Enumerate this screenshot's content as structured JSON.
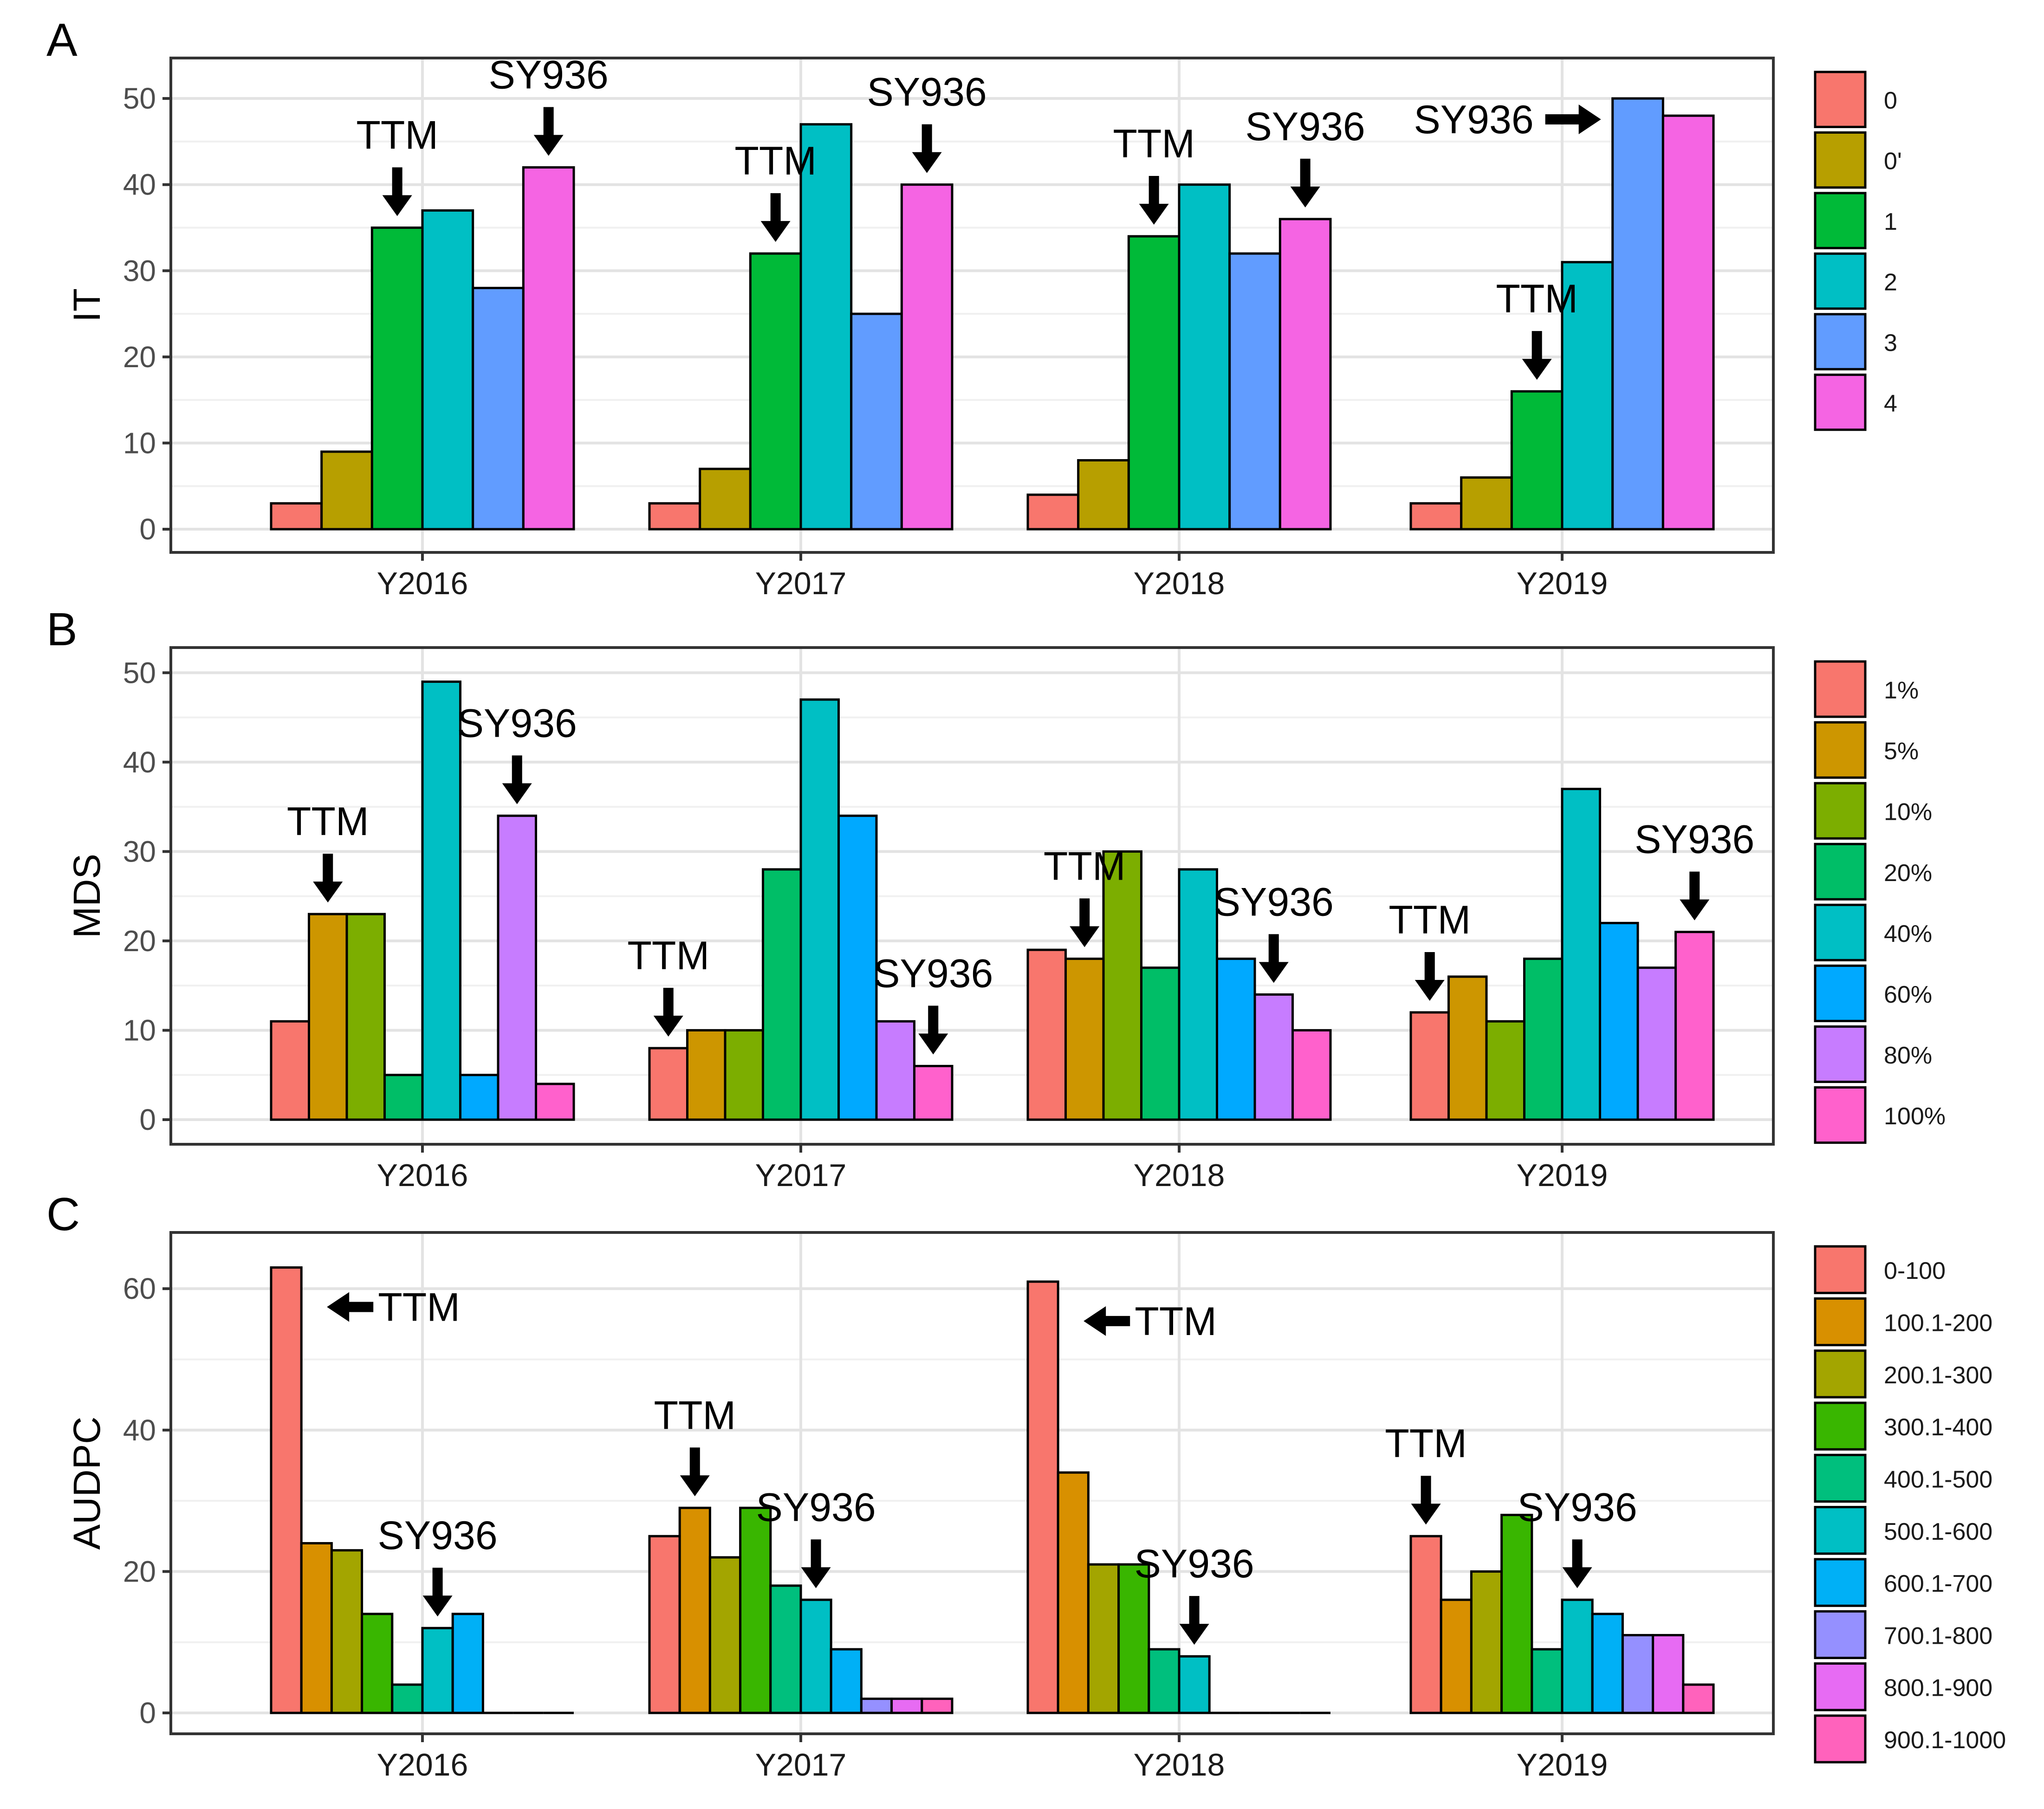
{
  "chart_data": [
    {
      "type": "bar",
      "panel_label": "A",
      "ylabel": "IT",
      "categories": [
        "Y2016",
        "Y2017",
        "Y2018",
        "Y2019"
      ],
      "ylim": [
        0,
        52
      ],
      "yticks": [
        0,
        10,
        20,
        30,
        40,
        50
      ],
      "legend_position": "right",
      "series": [
        {
          "name": "0",
          "color": "#F8766D",
          "values": [
            3,
            3,
            4,
            3
          ]
        },
        {
          "name": "0'",
          "color": "#B79F00",
          "values": [
            9,
            7,
            8,
            6
          ]
        },
        {
          "name": "1",
          "color": "#00BA38",
          "values": [
            35,
            32,
            34,
            16
          ]
        },
        {
          "name": "2",
          "color": "#00BFC4",
          "values": [
            37,
            47,
            40,
            31
          ]
        },
        {
          "name": "3",
          "color": "#619CFF",
          "values": [
            28,
            25,
            32,
            50
          ]
        },
        {
          "name": "4",
          "color": "#F564E3",
          "values": [
            42,
            40,
            36,
            48
          ]
        }
      ],
      "annotations": [
        {
          "text": "TTM",
          "category": "Y2016",
          "series": "1",
          "arrow": "down"
        },
        {
          "text": "SY936",
          "category": "Y2016",
          "series": "4",
          "arrow": "down"
        },
        {
          "text": "TTM",
          "category": "Y2017",
          "series": "1",
          "arrow": "down"
        },
        {
          "text": "SY936",
          "category": "Y2017",
          "series": "4",
          "arrow": "down"
        },
        {
          "text": "TTM",
          "category": "Y2018",
          "series": "1",
          "arrow": "down"
        },
        {
          "text": "SY936",
          "category": "Y2018",
          "series": "4",
          "arrow": "down"
        },
        {
          "text": "TTM",
          "category": "Y2019",
          "series": "1",
          "arrow": "down"
        },
        {
          "text": "SY936",
          "category": "Y2019",
          "series": "3",
          "arrow": "right"
        }
      ]
    },
    {
      "type": "bar",
      "panel_label": "B",
      "ylabel": "MDS",
      "categories": [
        "Y2016",
        "Y2017",
        "Y2018",
        "Y2019"
      ],
      "ylim": [
        0,
        51
      ],
      "yticks": [
        0,
        10,
        20,
        30,
        40,
        50
      ],
      "legend_position": "right",
      "series": [
        {
          "name": "1%",
          "color": "#F8766D",
          "values": [
            11,
            8,
            19,
            12
          ]
        },
        {
          "name": "5%",
          "color": "#CD9600",
          "values": [
            23,
            10,
            18,
            16
          ]
        },
        {
          "name": "10%",
          "color": "#7CAE00",
          "values": [
            23,
            10,
            30,
            11
          ]
        },
        {
          "name": "20%",
          "color": "#00BE67",
          "values": [
            5,
            28,
            17,
            18
          ]
        },
        {
          "name": "40%",
          "color": "#00BFC4",
          "values": [
            49,
            47,
            28,
            37
          ]
        },
        {
          "name": "60%",
          "color": "#00A9FF",
          "values": [
            5,
            34,
            18,
            22
          ]
        },
        {
          "name": "80%",
          "color": "#C77CFF",
          "values": [
            34,
            11,
            14,
            17
          ]
        },
        {
          "name": "100%",
          "color": "#FF61CC",
          "values": [
            4,
            6,
            10,
            21
          ]
        }
      ],
      "annotations": [
        {
          "text": "TTM",
          "category": "Y2016",
          "series": "5%",
          "arrow": "down"
        },
        {
          "text": "SY936",
          "category": "Y2016",
          "series": "80%",
          "arrow": "down"
        },
        {
          "text": "TTM",
          "category": "Y2017",
          "series": "1%",
          "arrow": "down"
        },
        {
          "text": "SY936",
          "category": "Y2017",
          "series": "100%",
          "arrow": "down"
        },
        {
          "text": "TTM",
          "category": "Y2018",
          "series": "5%",
          "arrow": "down"
        },
        {
          "text": "SY936",
          "category": "Y2018",
          "series": "80%",
          "arrow": "down"
        },
        {
          "text": "TTM",
          "category": "Y2019",
          "series": "1%",
          "arrow": "down"
        },
        {
          "text": "SY936",
          "category": "Y2019",
          "series": "100%",
          "arrow": "down"
        }
      ]
    },
    {
      "type": "bar",
      "panel_label": "C",
      "ylabel": "AUDPC",
      "categories": [
        "Y2016",
        "Y2017",
        "Y2018",
        "Y2019"
      ],
      "ylim": [
        0,
        65
      ],
      "yticks": [
        0,
        20,
        40,
        60
      ],
      "legend_position": "right",
      "series": [
        {
          "name": "0-100",
          "color": "#F8766D",
          "values": [
            63,
            25,
            61,
            25
          ]
        },
        {
          "name": "100.1-200",
          "color": "#D89000",
          "values": [
            24,
            29,
            34,
            16
          ]
        },
        {
          "name": "200.1-300",
          "color": "#A3A500",
          "values": [
            23,
            22,
            21,
            20
          ]
        },
        {
          "name": "300.1-400",
          "color": "#39B600",
          "values": [
            14,
            29,
            21,
            28
          ]
        },
        {
          "name": "400.1-500",
          "color": "#00BF7D",
          "values": [
            4,
            18,
            9,
            9
          ]
        },
        {
          "name": "500.1-600",
          "color": "#00BFC4",
          "values": [
            12,
            16,
            8,
            16
          ]
        },
        {
          "name": "600.1-700",
          "color": "#00B0F6",
          "values": [
            14,
            9,
            0,
            14
          ]
        },
        {
          "name": "700.1-800",
          "color": "#9590FF",
          "values": [
            0,
            2,
            0,
            11
          ]
        },
        {
          "name": "800.1-900",
          "color": "#E76BF3",
          "values": [
            0,
            2,
            0,
            11
          ]
        },
        {
          "name": "900.1-1000",
          "color": "#FF62BC",
          "values": [
            0,
            2,
            0,
            4
          ]
        }
      ],
      "annotations": [
        {
          "text": "TTM",
          "category": "Y2016",
          "series": "0-100",
          "arrow": "left"
        },
        {
          "text": "SY936",
          "category": "Y2016",
          "series": "500.1-600",
          "arrow": "down"
        },
        {
          "text": "TTM",
          "category": "Y2017",
          "series": "100.1-200",
          "arrow": "down"
        },
        {
          "text": "SY936",
          "category": "Y2017",
          "series": "500.1-600",
          "arrow": "down"
        },
        {
          "text": "TTM",
          "category": "Y2018",
          "series": "0-100",
          "arrow": "left"
        },
        {
          "text": "SY936",
          "category": "Y2018",
          "series": "500.1-600",
          "arrow": "down"
        },
        {
          "text": "TTM",
          "category": "Y2019",
          "series": "0-100",
          "arrow": "down"
        },
        {
          "text": "SY936",
          "category": "Y2019",
          "series": "500.1-600",
          "arrow": "down"
        }
      ]
    }
  ]
}
